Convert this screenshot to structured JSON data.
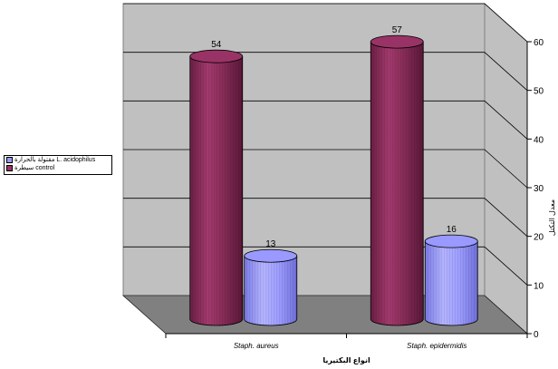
{
  "chart_data": {
    "type": "bar",
    "style": "3d-cylinder",
    "categories": [
      "Staph. aureus",
      "Staph. epidermidis"
    ],
    "series": [
      {
        "name": "سيطرة control",
        "values": [
          54,
          57
        ],
        "color": "#993366"
      },
      {
        "name": "مقتولة بالحرارة L. acidophilus",
        "values": [
          13,
          16
        ],
        "color": "#9999ff"
      }
    ],
    "xlabel": "انواع البكتيريا",
    "ylabel": "معدل التكتل",
    "ylim": [
      0,
      60
    ],
    "yticks": [
      0,
      10,
      20,
      30,
      40,
      50,
      60
    ],
    "grid": true,
    "legend_position": "left",
    "wall_color": "#c0c0c0",
    "floor_color": "#808080"
  }
}
